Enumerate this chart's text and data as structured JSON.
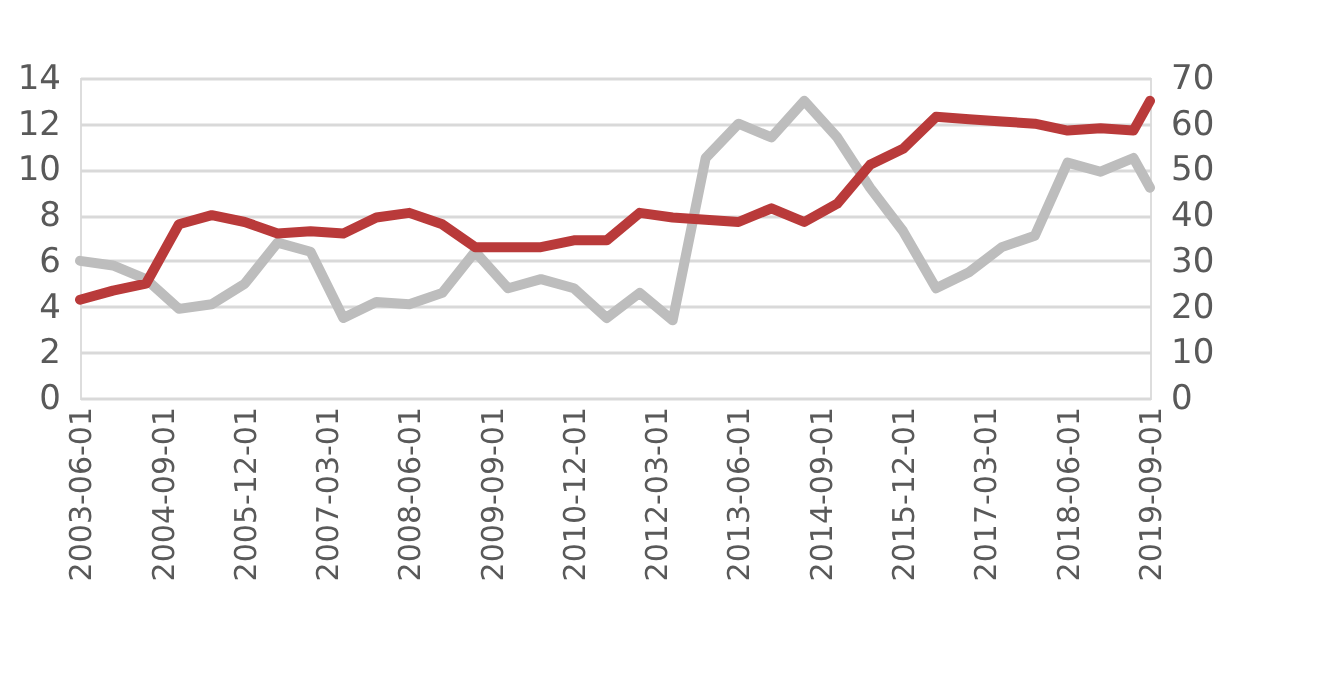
{
  "chart_data": {
    "type": "line",
    "x": [
      "2003-06-01",
      "2003-12-01",
      "2004-06-01",
      "2004-12-01",
      "2005-06-01",
      "2005-12-01",
      "2006-06-01",
      "2006-12-01",
      "2007-06-01",
      "2007-12-01",
      "2008-06-01",
      "2008-12-01",
      "2009-06-01",
      "2009-12-01",
      "2010-06-01",
      "2010-12-01",
      "2011-06-01",
      "2011-12-01",
      "2012-06-01",
      "2012-12-01",
      "2013-06-01",
      "2013-12-01",
      "2014-06-01",
      "2014-12-01",
      "2015-06-01",
      "2015-12-01",
      "2016-06-01",
      "2016-12-01",
      "2017-06-01",
      "2017-12-01",
      "2018-06-01",
      "2018-12-01",
      "2019-06-01",
      "2019-09-01"
    ],
    "series": [
      {
        "color": "#bdbdbd",
        "axis": "y2",
        "values": [
          30,
          29,
          26,
          19.5,
          20.5,
          25,
          34,
          32,
          17.5,
          21,
          20.5,
          23,
          32,
          24,
          26,
          24,
          17.5,
          23,
          17,
          52.5,
          60,
          57,
          65,
          57,
          46,
          36.5,
          24,
          27.5,
          33,
          35.5,
          51.5,
          49.5,
          52.5,
          46
        ]
      },
      {
        "color": "#b93a3a",
        "axis": "y",
        "values": [
          4.3,
          4.7,
          5.0,
          7.6,
          8.0,
          7.7,
          7.2,
          7.3,
          7.2,
          7.9,
          8.1,
          7.6,
          6.6,
          6.6,
          6.6,
          6.9,
          6.9,
          8.1,
          7.9,
          7.8,
          7.7,
          8.3,
          7.7,
          8.5,
          10.2,
          10.9,
          12.3,
          12.2,
          12.1,
          12.0,
          11.7,
          11.8,
          11.7,
          13.0
        ]
      }
    ],
    "xlim": [
      "2003-06-01",
      "2019-09-01"
    ],
    "xticks": [
      "2003-06-01",
      "2004-09-01",
      "2005-12-01",
      "2007-03-01",
      "2008-06-01",
      "2009-09-01",
      "2010-12-01",
      "2012-03-01",
      "2013-06-01",
      "2014-09-01",
      "2015-12-01",
      "2017-03-01",
      "2018-06-01",
      "2019-09-01"
    ],
    "ylim": [
      0,
      14
    ],
    "yticks": [
      0,
      2,
      4,
      6,
      8,
      10,
      12,
      14
    ],
    "y2lim": [
      0,
      70
    ],
    "y2ticks": [
      0,
      10,
      20,
      30,
      40,
      50,
      60,
      70
    ],
    "grid": "y",
    "marker": "none",
    "line_style": "solid"
  }
}
